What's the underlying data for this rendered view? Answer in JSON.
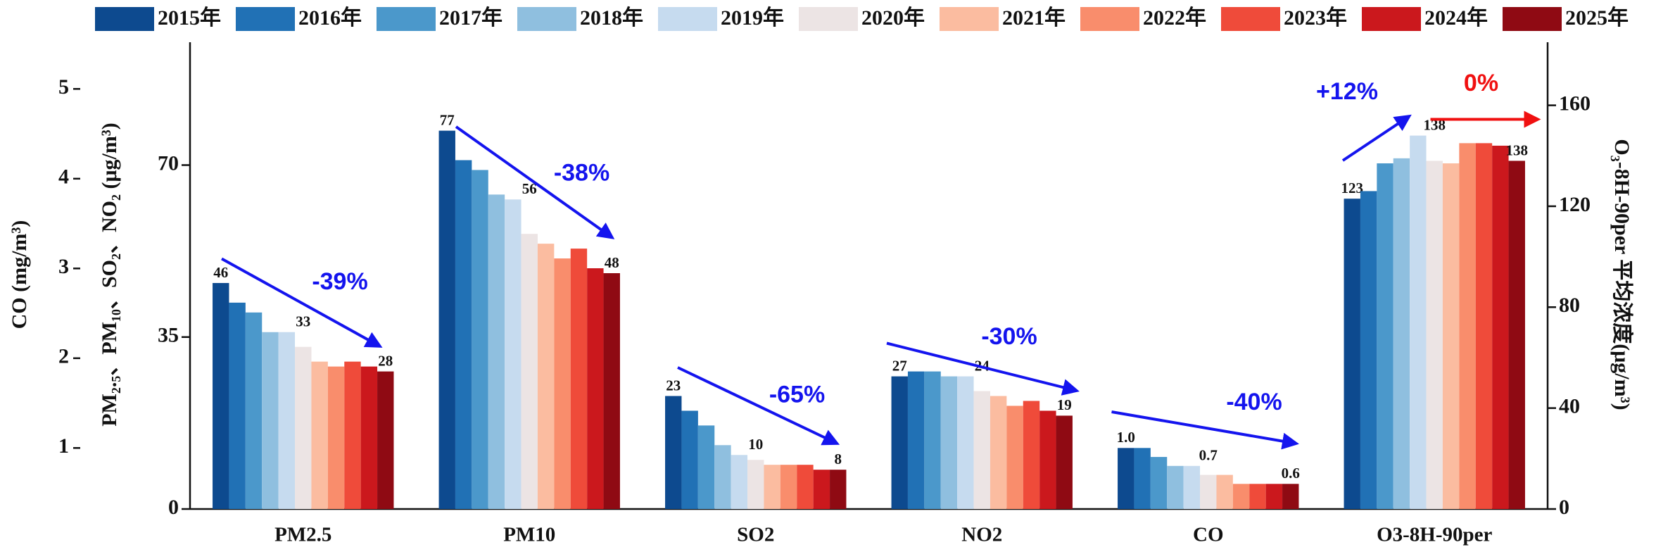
{
  "chart_data": {
    "type": "bar",
    "categories": [
      "PM2.5",
      "PM10",
      "SO2",
      "NO2",
      "CO",
      "O3-8H-90per"
    ],
    "category_axes": [
      "y",
      "y",
      "y",
      "y",
      "y3",
      "y2"
    ],
    "ylabel": "PM₂.₅、PM₁₀、SO₂、NO₂ (μg/m³)",
    "y2label": "O₃-8H-90per 平均浓度(μg/m³)",
    "y3label": "CO (mg/m³)",
    "ylim": [
      0,
      95
    ],
    "yticks": [
      0,
      35,
      70
    ],
    "y2lim": [
      0,
      185
    ],
    "y2ticks": [
      0,
      40,
      80,
      120,
      160
    ],
    "y3lim": [
      0.32,
      5.52
    ],
    "y3ticks": [
      1,
      2,
      3,
      4,
      5
    ],
    "grid": false,
    "legend": "top",
    "series": [
      {
        "name": "2015年",
        "color": "#0d4a8f",
        "values": [
          46,
          77,
          23,
          27,
          1.0,
          123
        ],
        "value_labels": [
          "46",
          "77",
          "23",
          "27",
          "1.0",
          "123"
        ]
      },
      {
        "name": "2016年",
        "color": "#2171b5",
        "values": [
          42,
          71,
          20,
          28,
          1.0,
          126
        ]
      },
      {
        "name": "2017年",
        "color": "#4b98cb",
        "values": [
          40,
          69,
          17,
          28,
          0.9,
          137
        ]
      },
      {
        "name": "2018年",
        "color": "#8fbfdf",
        "values": [
          36,
          64,
          13,
          27,
          0.8,
          139
        ]
      },
      {
        "name": "2019年",
        "color": "#c6dbef",
        "values": [
          36,
          63,
          11,
          27,
          0.8,
          148
        ]
      },
      {
        "name": "2020年",
        "color": "#ece4e4",
        "values": [
          33,
          56,
          10,
          24,
          0.7,
          138
        ],
        "value_labels": [
          "33",
          "56",
          "10",
          "24",
          "0.7",
          "138"
        ]
      },
      {
        "name": "2021年",
        "color": "#fbbca0",
        "values": [
          30,
          54,
          9,
          23,
          0.7,
          137
        ]
      },
      {
        "name": "2022年",
        "color": "#f98d6c",
        "values": [
          29,
          51,
          9,
          21,
          0.6,
          145
        ]
      },
      {
        "name": "2023年",
        "color": "#ef4b3a",
        "values": [
          30,
          53,
          9,
          22,
          0.6,
          145
        ]
      },
      {
        "name": "2024年",
        "color": "#cb181d",
        "values": [
          29,
          49,
          8,
          20,
          0.6,
          144
        ]
      },
      {
        "name": "2025年",
        "color": "#8f0a13",
        "values": [
          28,
          48,
          8,
          19,
          0.6,
          138
        ],
        "value_labels": [
          "28",
          "48",
          "8",
          "19",
          "0.6",
          "138"
        ]
      }
    ],
    "annotations": [
      {
        "text": "-39%",
        "color": "#1414ee"
      },
      {
        "text": "-38%",
        "color": "#1414ee"
      },
      {
        "text": "-65%",
        "color": "#1414ee"
      },
      {
        "text": "-30%",
        "color": "#1414ee"
      },
      {
        "text": "-40%",
        "color": "#1414ee"
      },
      {
        "text": "+12%",
        "color": "#1414ee"
      },
      {
        "text": "0%",
        "color": "#f01010"
      }
    ]
  }
}
